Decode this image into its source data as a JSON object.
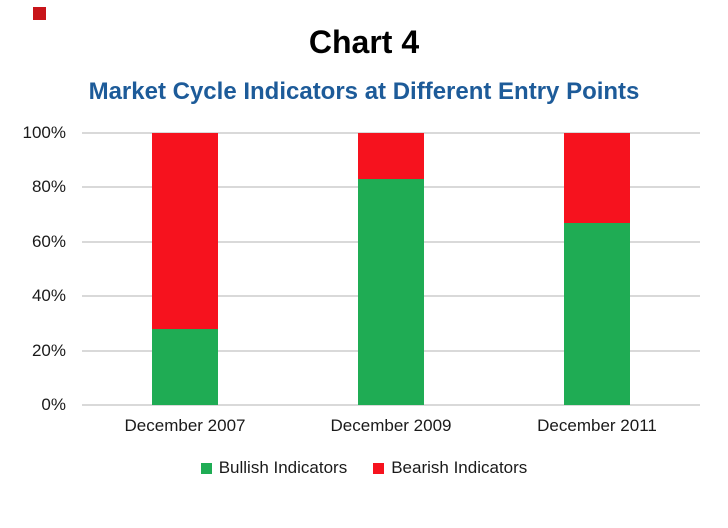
{
  "page": {
    "background": "#ffffff"
  },
  "corner_mark": {
    "color": "#c8151a"
  },
  "chart_data": {
    "type": "bar",
    "stacked": true,
    "normalized": "percent",
    "title": "Chart 4",
    "subtitle": "Market Cycle Indicators at Different Entry Points",
    "categories": [
      "December 2007",
      "December 2009",
      "December 2011"
    ],
    "series": [
      {
        "name": "Bullish Indicators",
        "color": "#1fac54",
        "values": [
          28,
          83,
          67
        ]
      },
      {
        "name": "Bearish Indicators",
        "color": "#f6121e",
        "values": [
          72,
          17,
          33
        ]
      }
    ],
    "yticks_top_to_bottom": [
      "100%",
      "80%",
      "60%",
      "40%",
      "20%",
      "0%"
    ],
    "ylim": [
      0,
      100
    ],
    "grid": true,
    "legend_position": "bottom",
    "colors": {
      "title_text": "#000000",
      "subtitle_text": "#1d5b99",
      "axis_text": "#1a1a1a",
      "gridline": "#d9d9d9"
    }
  }
}
